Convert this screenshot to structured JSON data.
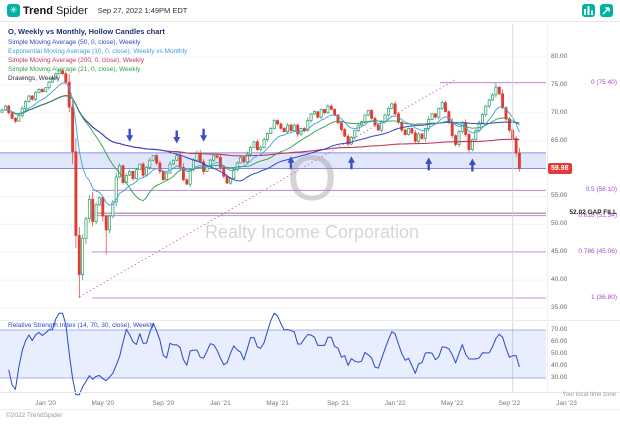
{
  "header": {
    "brand": {
      "trend": "Trend",
      "spider": "Spider"
    },
    "timestamp": "Sep 27, 2022 1:49PM EDT"
  },
  "footer": {
    "copyright": "©2022 TrendSpider",
    "timezone": "Your local time zone"
  },
  "chart": {
    "title": "O, Weekly vs Monthly, Hollow Candles chart",
    "legend": [
      {
        "label": "Simple Moving Average (50, 0, close), Weekly",
        "color": "#2c46c8"
      },
      {
        "label": "Exponential Moving Average (10, 0, close), Weekly vs Monthly",
        "color": "#3f9fdc"
      },
      {
        "label": "Simple Moving Average (200, 0, close), Weekly",
        "color": "#c0355e"
      },
      {
        "label": "Simple Moving Average (21, 0, close), Weekly",
        "color": "#2f9e44"
      },
      {
        "label": "Drawings, Weekly",
        "color": "#2a2a3a"
      }
    ],
    "watermark": {
      "symbol": "O",
      "name": "Realty Income Corporation"
    },
    "rsi_label": "Relative Strength Index (14, 70, 30, close), Weekly",
    "gap_label": "52.02 GAP FILL",
    "price_badge": "59.98"
  },
  "chart_data": {
    "type": "candlestick",
    "symbol": "O",
    "company": "Realty Income Corporation",
    "interval": "Weekly vs Monthly, Hollow Candles",
    "x_tick_labels": [
      "Jan '20",
      "May '20",
      "Sep '20",
      "Jan '21",
      "May '21",
      "Sep '21",
      "Jan '22",
      "May '22",
      "Sep '22",
      "Jan '23"
    ],
    "x_tick_weeks": [
      13,
      30,
      48,
      65,
      82,
      100,
      117,
      134,
      151,
      168
    ],
    "y_ticks": [
      80,
      75,
      70,
      65,
      60,
      55,
      50,
      45,
      40,
      35
    ],
    "y_range": [
      33,
      81
    ],
    "weekly_closes": [
      70.5,
      71.2,
      70.0,
      69.0,
      68.5,
      69.5,
      70.8,
      72.0,
      73.0,
      72.4,
      73.6,
      74.2,
      73.8,
      74.5,
      75.5,
      76.2,
      77.0,
      77.5,
      77.0,
      75.5,
      71.0,
      63.0,
      48.0,
      41.0,
      47.5,
      51.0,
      54.5,
      50.5,
      53.5,
      54.8,
      51.5,
      49.0,
      51.5,
      54.0,
      58.5,
      60.5,
      57.5,
      58.8,
      59.5,
      58.2,
      59.8,
      60.8,
      58.8,
      60.2,
      61.5,
      62.3,
      61.0,
      59.5,
      58.0,
      59.2,
      60.8,
      61.5,
      62.3,
      60.2,
      58.0,
      57.2,
      59.8,
      61.5,
      62.8,
      61.2,
      59.5,
      60.5,
      61.5,
      62.3,
      62.0,
      60.2,
      58.6,
      57.4,
      58.2,
      59.8,
      61.0,
      62.0,
      61.2,
      62.6,
      63.8,
      64.8,
      63.4,
      63.8,
      65.2,
      66.3,
      67.2,
      68.6,
      68.0,
      67.2,
      66.6,
      67.8,
      66.8,
      67.8,
      66.2,
      67.2,
      66.8,
      68.6,
      69.8,
      70.2,
      69.2,
      70.6,
      70.0,
      71.2,
      70.6,
      69.6,
      68.2,
      67.0,
      65.8,
      64.4,
      65.6,
      66.8,
      67.8,
      68.4,
      69.6,
      70.4,
      69.0,
      67.8,
      66.9,
      68.4,
      69.6,
      70.8,
      71.6,
      69.8,
      68.3,
      66.9,
      66.1,
      67.2,
      66.4,
      64.9,
      66.2,
      65.4,
      67.2,
      68.8,
      69.8,
      69.2,
      70.8,
      71.8,
      70.2,
      68.4,
      65.9,
      64.3,
      66.6,
      68.2,
      66.1,
      63.4,
      65.2,
      66.8,
      68.2,
      69.7,
      71.2,
      72.3,
      73.2,
      74.6,
      73.4,
      70.9,
      68.9,
      66.9,
      65.4,
      62.8,
      59.98
    ],
    "wick_overrides": {
      "23": {
        "low": 36.8
      },
      "31": {
        "low": 44.6
      },
      "147": {
        "high": 75.4
      }
    },
    "last_price": 59.98,
    "support_band": {
      "top": 62.8,
      "bottom": 60.0
    },
    "fib_levels": [
      {
        "label": "0 (75.40)",
        "value": 75.4
      },
      {
        "label": "0.5 (56.10)",
        "value": 56.1
      },
      {
        "label": "0.618 (51.54)",
        "value": 51.54
      },
      {
        "label": "0.786 (45.06)",
        "value": 45.06
      },
      {
        "label": "1 (36.80)",
        "value": 36.8
      }
    ],
    "gap_fill": {
      "label": "52.02 GAP FILL",
      "value": 52.02
    },
    "trendline": {
      "from": {
        "week": 23,
        "price": 37.0
      },
      "to": {
        "week": 135,
        "price": 76.0
      },
      "style": "dotted"
    },
    "arrows_down": [
      {
        "week": 38,
        "price": 64.8
      },
      {
        "week": 52,
        "price": 64.5
      },
      {
        "week": 60,
        "price": 64.8
      }
    ],
    "arrows_up": [
      {
        "week": 86,
        "price": 62.2
      },
      {
        "week": 104,
        "price": 62.2
      },
      {
        "week": 127,
        "price": 62.0
      },
      {
        "week": 140,
        "price": 61.8
      }
    ],
    "current_week_line": 152,
    "indicators": [
      {
        "name": "SMA",
        "period": 50,
        "color": "#2c46c8"
      },
      {
        "name": "EMA",
        "period": 10,
        "color": "#3f9fdc"
      },
      {
        "name": "SMA",
        "period": 200,
        "color": "#c0355e"
      },
      {
        "name": "SMA",
        "period": 21,
        "color": "#2f9e44"
      }
    ],
    "rsi": {
      "period": 14,
      "upper": 70,
      "lower": 30,
      "y_ticks": [
        70,
        60,
        50,
        40,
        30
      ],
      "line_color": "#2a47c9"
    }
  }
}
